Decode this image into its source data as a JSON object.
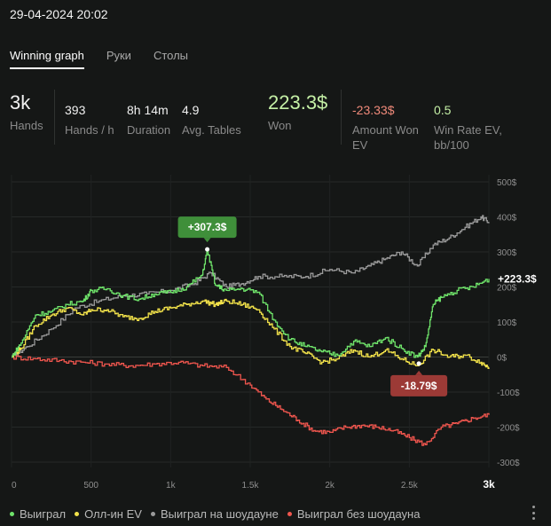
{
  "header": {
    "datetime": "29-04-2024 20:02"
  },
  "tabs": [
    {
      "label": "Winning graph",
      "active": true
    },
    {
      "label": "Руки",
      "active": false
    },
    {
      "label": "Столы",
      "active": false
    }
  ],
  "stats": {
    "hands": {
      "value": "3k",
      "label": "Hands"
    },
    "hands_per_hour": {
      "value": "393",
      "label": "Hands / h"
    },
    "duration": {
      "value": "8h 14m",
      "label": "Duration"
    },
    "avg_tables": {
      "value": "4.9",
      "label": "Avg. Tables"
    },
    "won": {
      "value": "223.3$",
      "label": "Won"
    },
    "amount_won_ev": {
      "value": "-23.33$",
      "label_line1": "Amount Won",
      "label_line2": "EV"
    },
    "win_rate_ev": {
      "value": "0.5",
      "label_line1": "Win Rate EV,",
      "label_line2": "bb/100"
    }
  },
  "colors": {
    "won": "#6fe36a",
    "allin_ev": "#f2e24a",
    "showdown": "#9a9a9a",
    "non_showdown": "#f0564e",
    "badge_green": "#3f8f3a",
    "badge_red": "#9c3a36"
  },
  "chart_data": {
    "type": "line",
    "x_ticks": [
      "0",
      "500",
      "1k",
      "1.5k",
      "2k",
      "2.5k",
      "3k"
    ],
    "x_tick_values": [
      0,
      500,
      1000,
      1500,
      2000,
      2500,
      3000
    ],
    "y_ticks": [
      "500$",
      "400$",
      "300$",
      "200$",
      "100$",
      "0$",
      "-100$",
      "-200$",
      "-300$"
    ],
    "y_tick_values": [
      500,
      400,
      300,
      200,
      100,
      0,
      -100,
      -200,
      -300
    ],
    "xlim": [
      0,
      3000
    ],
    "ylim": [
      -300,
      500
    ],
    "annotations": {
      "peak": {
        "label": "+307.3$",
        "x": 1230,
        "y": 307.3
      },
      "trough": {
        "label": "-18.79$",
        "x": 2560,
        "y": -18.79
      },
      "end": {
        "label": "+223.3$",
        "y": 223.3
      }
    },
    "series": [
      {
        "name": "Выиграл",
        "key": "won",
        "x": [
          0,
          60,
          150,
          250,
          350,
          450,
          500,
          600,
          700,
          800,
          900,
          1000,
          1100,
          1200,
          1230,
          1280,
          1350,
          1450,
          1550,
          1650,
          1750,
          1850,
          1950,
          2050,
          2150,
          2250,
          2350,
          2450,
          2550,
          2600,
          2650,
          2700,
          2800,
          2900,
          3000
        ],
        "y": [
          0,
          40,
          120,
          130,
          150,
          160,
          190,
          195,
          175,
          165,
          180,
          185,
          200,
          235,
          307,
          205,
          190,
          195,
          185,
          105,
          50,
          30,
          15,
          5,
          45,
          30,
          55,
          25,
          0,
          30,
          150,
          170,
          190,
          200,
          223
        ]
      },
      {
        "name": "Олл-ин EV",
        "key": "allin_ev",
        "x": [
          0,
          60,
          150,
          250,
          350,
          450,
          500,
          600,
          700,
          800,
          900,
          1000,
          1100,
          1200,
          1280,
          1350,
          1450,
          1550,
          1650,
          1750,
          1850,
          1950,
          2050,
          2150,
          2250,
          2350,
          2450,
          2550,
          2650,
          2750,
          2850,
          2950,
          3000
        ],
        "y": [
          0,
          25,
          90,
          120,
          140,
          120,
          135,
          135,
          115,
          110,
          130,
          140,
          150,
          160,
          150,
          160,
          150,
          135,
          80,
          30,
          10,
          -15,
          -5,
          20,
          0,
          20,
          -5,
          -25,
          20,
          0,
          5,
          -15,
          -30
        ]
      },
      {
        "name": "Выиграл на шоудауне",
        "key": "showdown",
        "x": [
          0,
          100,
          250,
          400,
          550,
          700,
          850,
          1000,
          1150,
          1250,
          1350,
          1450,
          1550,
          1700,
          1850,
          2000,
          2150,
          2250,
          2350,
          2450,
          2550,
          2650,
          2750,
          2850,
          2950,
          3000
        ],
        "y": [
          0,
          30,
          80,
          140,
          160,
          175,
          180,
          190,
          210,
          240,
          200,
          210,
          230,
          230,
          230,
          250,
          240,
          260,
          280,
          300,
          260,
          320,
          340,
          370,
          400,
          385
        ]
      },
      {
        "name": "Выиграл без шоудауна",
        "key": "non_showdown",
        "x": [
          0,
          150,
          300,
          450,
          600,
          750,
          900,
          1050,
          1200,
          1350,
          1500,
          1600,
          1700,
          1800,
          1900,
          2000,
          2100,
          2200,
          2300,
          2400,
          2500,
          2600,
          2700,
          2800,
          2900,
          3000
        ],
        "y": [
          0,
          -5,
          -10,
          -15,
          -20,
          -25,
          -20,
          -15,
          -25,
          -30,
          -80,
          -120,
          -150,
          -180,
          -210,
          -215,
          -200,
          -195,
          -200,
          -210,
          -230,
          -250,
          -200,
          -190,
          -175,
          -165
        ]
      }
    ]
  },
  "legend": [
    {
      "label": "Выиграл",
      "key": "won"
    },
    {
      "label": "Олл-ин EV",
      "key": "allin_ev"
    },
    {
      "label": "Выиграл на шоудауне",
      "key": "showdown"
    },
    {
      "label": "Выиграл без шоудауна",
      "key": "non_showdown"
    }
  ]
}
